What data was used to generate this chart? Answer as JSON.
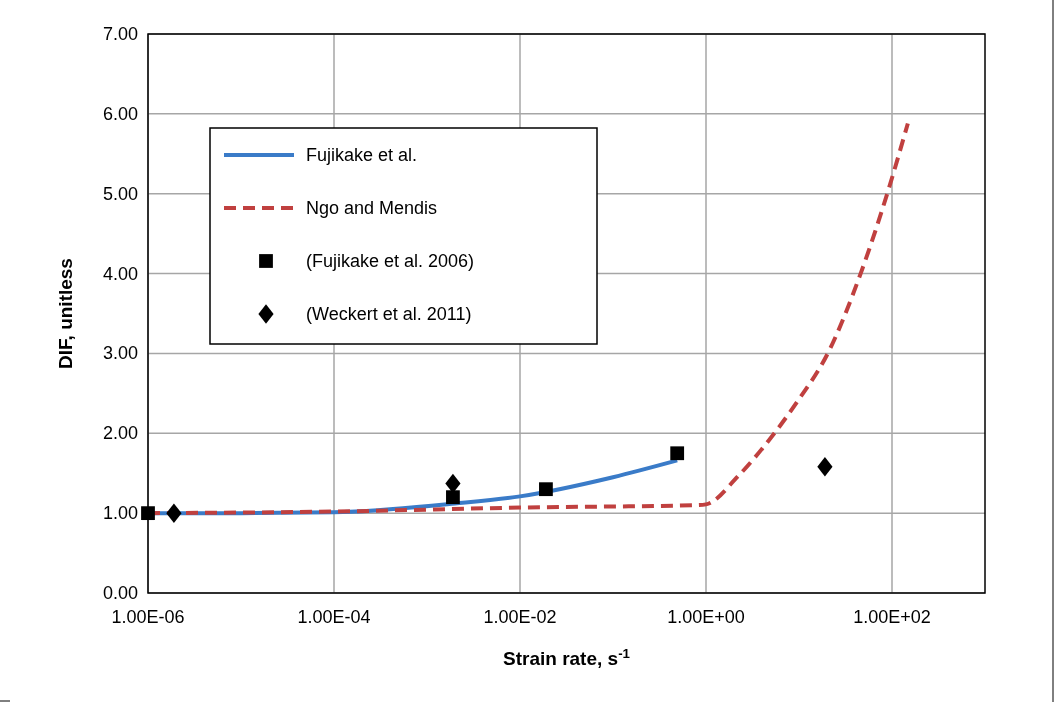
{
  "chart_data": {
    "type": "line",
    "xlabel": "Strain rate, s$^{-1}$",
    "ylabel": "DIF, unitless",
    "log": "x",
    "xlim": [
      1e-06,
      1000
    ],
    "xticks": [
      {
        "value": 1e-06,
        "label": "1.00E-06"
      },
      {
        "value": 0.0001,
        "label": "1.00E-04"
      },
      {
        "value": 0.01,
        "label": "1.00E-02"
      },
      {
        "value": 1,
        "label": "1.00E+00"
      },
      {
        "value": 100,
        "label": "1.00E+02"
      }
    ],
    "ylim": [
      0,
      7
    ],
    "yticks": [
      {
        "value": 0,
        "label": "0.00"
      },
      {
        "value": 1,
        "label": "1.00"
      },
      {
        "value": 2,
        "label": "2.00"
      },
      {
        "value": 3,
        "label": "3.00"
      },
      {
        "value": 4,
        "label": "4.00"
      },
      {
        "value": 5,
        "label": "5.00"
      },
      {
        "value": 6,
        "label": "6.00"
      },
      {
        "value": 7,
        "label": "7.00"
      }
    ],
    "grid": true,
    "legend": "top left",
    "series": [
      {
        "name": "Fujikake et al.",
        "color": "#3a7bc8",
        "line_style": "solid",
        "marker": "none",
        "x": [
          1e-06,
          1e-05,
          0.0001,
          0.002,
          0.01,
          0.1,
          0.49
        ],
        "values": [
          1.0,
          1.0,
          1.01,
          1.12,
          1.21,
          1.45,
          1.66
        ]
      },
      {
        "name": "Ngo and Mendis",
        "color": "#c0403f",
        "line_style": "dashed",
        "marker": "none",
        "x": [
          1e-06,
          0.0001,
          0.01,
          0.8,
          1,
          2.2,
          4.8,
          9.5,
          21,
          46,
          91,
          148
        ],
        "values": [
          1.0,
          1.02,
          1.07,
          1.1,
          1.11,
          1.46,
          1.92,
          2.39,
          3.03,
          4.0,
          5.04,
          5.88
        ]
      },
      {
        "name": "(Fujikake et al. 2006)",
        "type": "scatter",
        "color": "#000000",
        "marker": "square",
        "x": [
          1e-06,
          0.0019,
          0.019,
          0.49
        ],
        "values": [
          1.0,
          1.2,
          1.3,
          1.75
        ]
      },
      {
        "name": "(Weckert et al. 2011)",
        "type": "scatter",
        "color": "#000000",
        "marker": "diamond",
        "x": [
          1.9e-06,
          0.0019,
          19
        ],
        "values": [
          1.0,
          1.37,
          1.58
        ]
      }
    ]
  }
}
